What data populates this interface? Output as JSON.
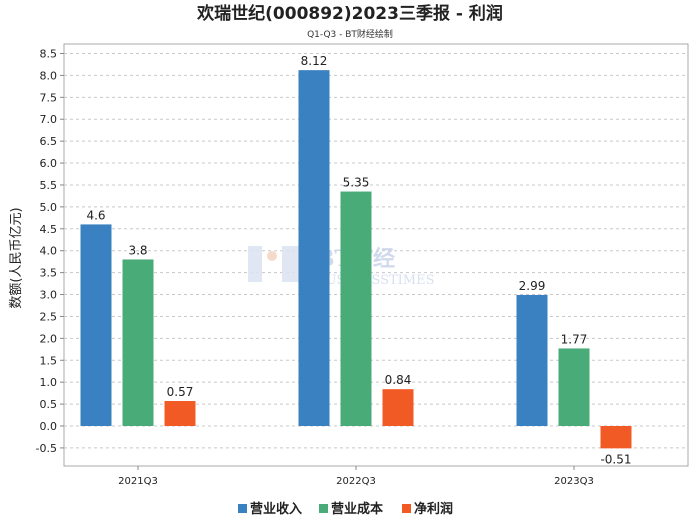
{
  "chart_data": {
    "type": "bar",
    "title": "欢瑞世纪(000892)2023三季报 - 利润",
    "subtitle": "Q1-Q3 - BT财经绘制",
    "ylabel": "数额(人民币亿元)",
    "xlabel": "",
    "categories": [
      "2021Q3",
      "2022Q3",
      "2023Q3"
    ],
    "ylim": [
      -0.7,
      8.5
    ],
    "yticks": [
      "-0.5",
      "0.0",
      "0.5",
      "1.0",
      "1.5",
      "2.0",
      "2.5",
      "3.0",
      "3.5",
      "4.0",
      "4.5",
      "5.0",
      "5.5",
      "6.0",
      "6.5",
      "7.0",
      "7.5",
      "8.0",
      "8.5"
    ],
    "grid": true,
    "legend_position": "bottom",
    "series": [
      {
        "name": "营业收入",
        "color": "#3a81c1",
        "values": [
          4.6,
          8.12,
          2.99
        ],
        "labels": [
          "4.6",
          "8.12",
          "2.99"
        ]
      },
      {
        "name": "营业成本",
        "color": "#48ab78",
        "values": [
          3.8,
          5.35,
          1.77
        ],
        "labels": [
          "3.8",
          "5.35",
          "1.77"
        ]
      },
      {
        "name": "净利润",
        "color": "#f15a24",
        "values": [
          0.57,
          0.84,
          -0.51
        ],
        "labels": [
          "0.57",
          "0.84",
          "-0.51"
        ]
      }
    ]
  },
  "watermark": {
    "text": "BT财经",
    "subtext": "BUSINESSTIMES"
  }
}
